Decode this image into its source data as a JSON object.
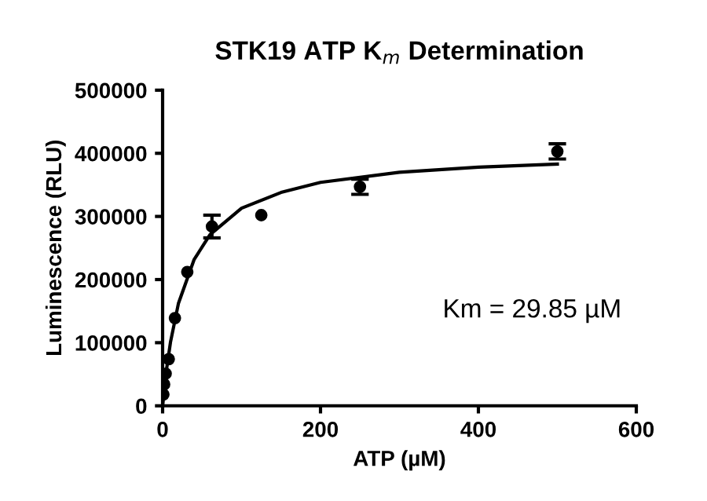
{
  "chart_data": {
    "type": "scatter",
    "title": "STK19 ATP K$_{m}$ Determination",
    "xlabel": "ATP (µM)",
    "ylabel": "Luminescence (RLU)",
    "xlim": [
      0,
      600
    ],
    "ylim": [
      0,
      500000
    ],
    "xticks": [
      0,
      200,
      400,
      600
    ],
    "yticks": [
      0,
      100000,
      200000,
      300000,
      400000,
      500000
    ],
    "grid": false,
    "legend": false,
    "marker": "circle",
    "annotations": [
      "Km = 29.85 µM"
    ],
    "series": [
      {
        "color": "#000000",
        "x": [
          0.98,
          1.95,
          3.9,
          7.8,
          15.6,
          31.25,
          62.5,
          125,
          250,
          500
        ],
        "values": [
          18000,
          34000,
          51000,
          74000,
          139000,
          212000,
          284000,
          302000,
          347000,
          403000
        ],
        "errors": [
          null,
          null,
          null,
          null,
          null,
          null,
          18000,
          null,
          12000,
          12000
        ]
      },
      {
        "type": "line",
        "color": "#000000",
        "line_style": "solid",
        "marker": "none",
        "x": [
          0,
          5,
          10,
          20,
          40,
          60,
          100,
          150,
          200,
          300,
          400,
          500
        ],
        "values": [
          0,
          58000,
          101000,
          162000,
          232000,
          271000,
          313000,
          338000,
          354000,
          370000,
          378000,
          383000
        ]
      }
    ]
  }
}
